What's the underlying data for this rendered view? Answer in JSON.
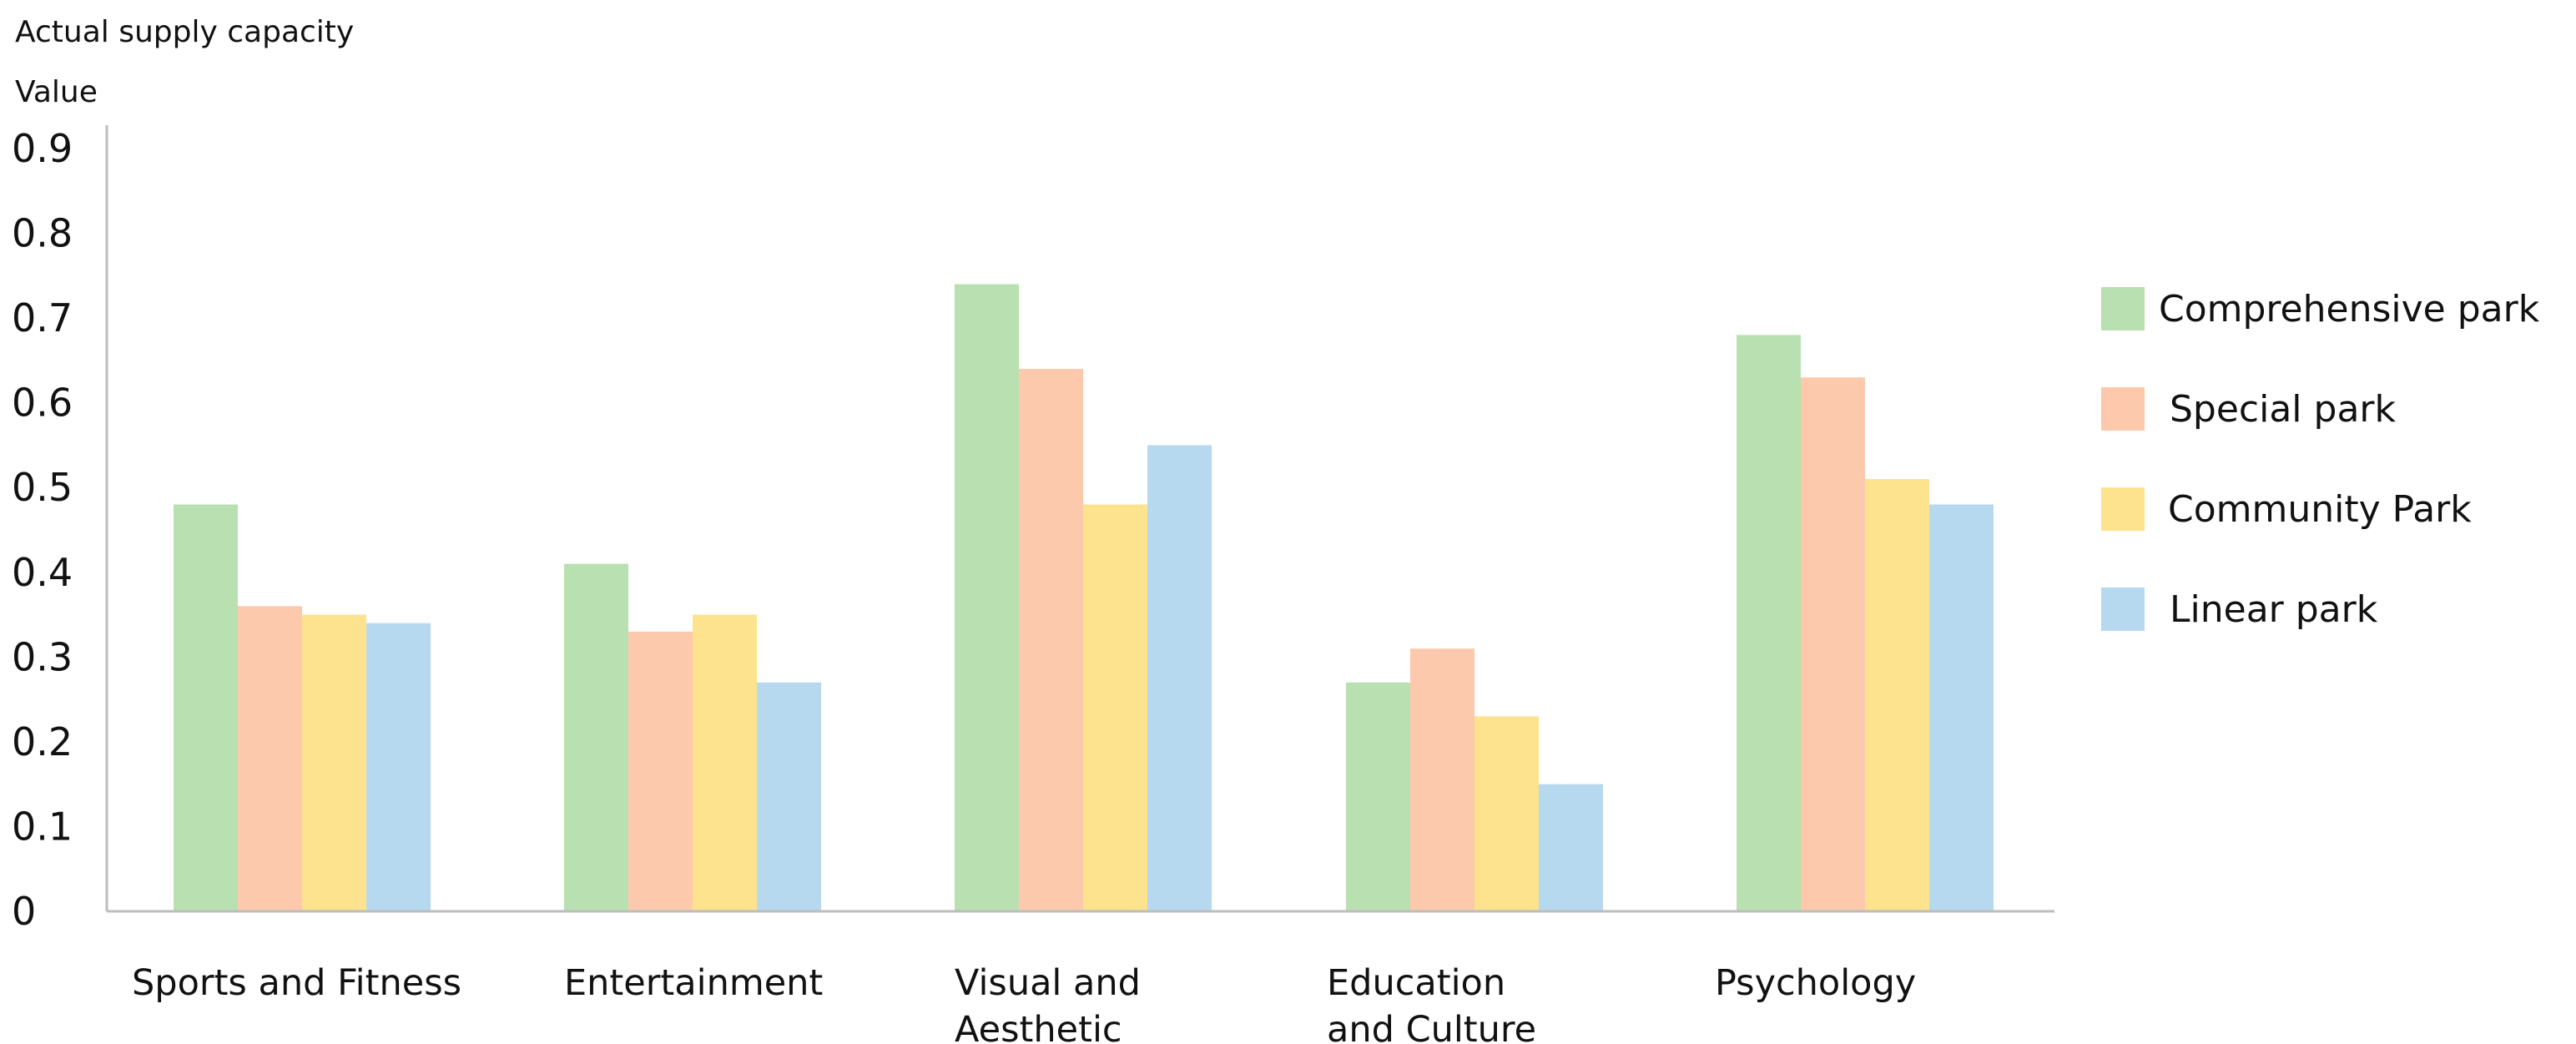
{
  "chart_data": {
    "type": "bar",
    "title": "Actual supply capacity",
    "ylabel": "Value",
    "xlabel": "",
    "ylim": [
      0,
      0.9
    ],
    "yticks": [
      "0",
      "0.1",
      "0.2",
      "0.3",
      "0.4",
      "0.5",
      "0.6",
      "0.7",
      "0.8",
      "0.9"
    ],
    "categories": [
      [
        "Sports and Fitness"
      ],
      [
        "Entertainment"
      ],
      [
        "Visual and",
        "Aesthetic"
      ],
      [
        "Education",
        "and Culture"
      ],
      [
        "Psychology"
      ]
    ],
    "series": [
      {
        "name": "Comprehensive park",
        "color": "#b9e0b0",
        "values": [
          0.48,
          0.41,
          0.74,
          0.27,
          0.68
        ]
      },
      {
        "name": "Special park",
        "color": "#fdc9ad",
        "values": [
          0.36,
          0.33,
          0.64,
          0.31,
          0.63
        ]
      },
      {
        "name": "Community Park",
        "color": "#fde38d",
        "values": [
          0.35,
          0.35,
          0.48,
          0.23,
          0.51
        ]
      },
      {
        "name": "Linear park",
        "color": "#b6d9ef",
        "values": [
          0.34,
          0.27,
          0.55,
          0.15,
          0.48
        ]
      }
    ],
    "grid": false,
    "legend_position": "right"
  }
}
